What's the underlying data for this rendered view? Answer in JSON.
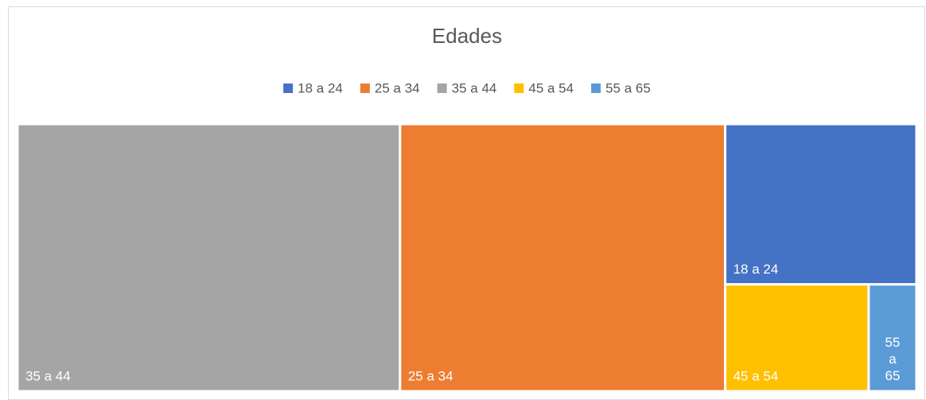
{
  "chart_data": {
    "type": "treemap",
    "title": "Edades",
    "categories": [
      "18 a 24",
      "25 a 34",
      "35 a 44",
      "45 a 54",
      "55 a 65"
    ],
    "values": [
      6,
      17,
      20,
      3,
      1
    ],
    "colors": [
      "#4472c4",
      "#ed7d31",
      "#a5a5a5",
      "#ffc000",
      "#5b9bd5"
    ],
    "legend": "top"
  }
}
